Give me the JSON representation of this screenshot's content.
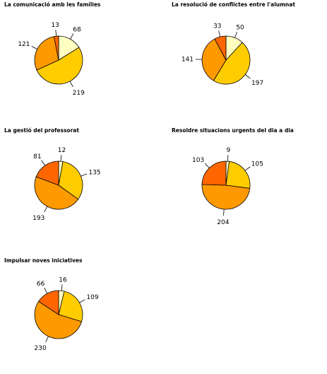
{
  "colors": {
    "slice_1": "#ffffc2",
    "slice_2": "#ffcc00",
    "slice_3": "#ff9900",
    "slice_4": "#ff6600",
    "outline": "#000000"
  },
  "chart_data": [
    {
      "type": "pie",
      "title": "La comunicació amb les famílies",
      "values": [
        68,
        219,
        121,
        13
      ],
      "labels": [
        "68",
        "219",
        "121",
        "13"
      ]
    },
    {
      "type": "pie",
      "title": "La resolució de conflictes entre l'alumnat",
      "values": [
        50,
        197,
        141,
        33
      ],
      "labels": [
        "50",
        "197",
        "141",
        "33"
      ]
    },
    {
      "type": "pie",
      "title": "La gestió del professorat",
      "values": [
        12,
        135,
        193,
        81
      ],
      "labels": [
        "12",
        "135",
        "193",
        "81"
      ]
    },
    {
      "type": "pie",
      "title": "Resoldre situacions urgents del dia a dia",
      "values": [
        9,
        105,
        204,
        103
      ],
      "labels": [
        "9",
        "105",
        "204",
        "103"
      ]
    },
    {
      "type": "pie",
      "title": "Impulsar noves iniciatives",
      "values": [
        16,
        109,
        230,
        66
      ],
      "labels": [
        "16",
        "109",
        "230",
        "66"
      ]
    }
  ]
}
